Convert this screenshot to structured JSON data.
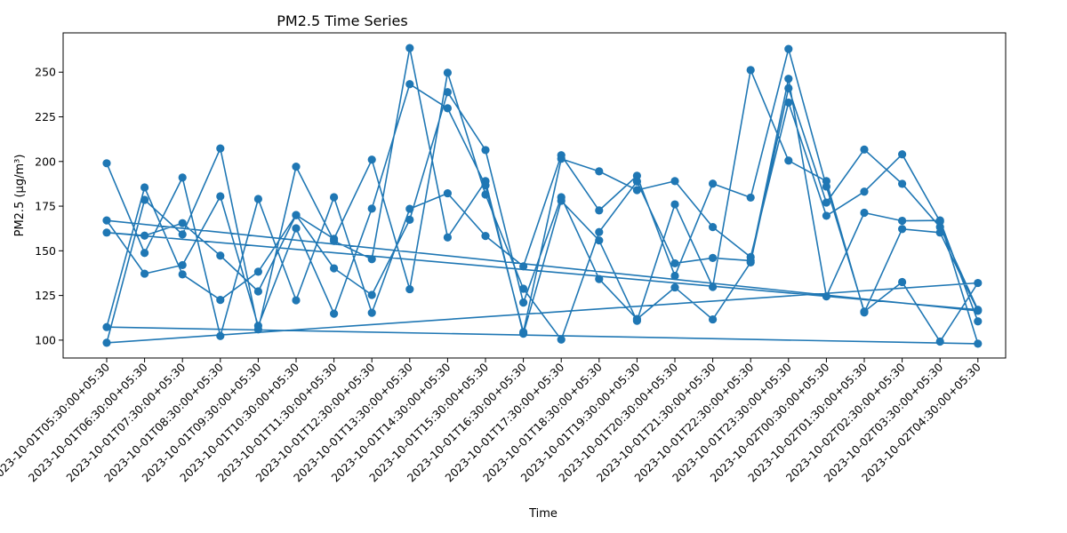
{
  "chart_data": {
    "type": "line",
    "title": "PM2.5 Time Series",
    "xlabel": "Time",
    "ylabel": "PM2.5 (µg/m³)",
    "ylim": [
      90,
      272
    ],
    "y_ticks": [
      100,
      125,
      150,
      175,
      200,
      225,
      250
    ],
    "grid": false,
    "legend": "none",
    "color": "#1f77b4",
    "categories": [
      "2023-10-01T05:30:00+05:30",
      "2023-10-01T06:30:00+05:30",
      "2023-10-01T07:30:00+05:30",
      "2023-10-01T08:30:00+05:30",
      "2023-10-01T09:30:00+05:30",
      "2023-10-01T10:30:00+05:30",
      "2023-10-01T11:30:00+05:30",
      "2023-10-01T12:30:00+05:30",
      "2023-10-01T13:30:00+05:30",
      "2023-10-01T14:30:00+05:30",
      "2023-10-01T15:30:00+05:30",
      "2023-10-01T16:30:00+05:30",
      "2023-10-01T17:30:00+05:30",
      "2023-10-01T18:30:00+05:30",
      "2023-10-01T19:30:00+05:30",
      "2023-10-01T20:30:00+05:30",
      "2023-10-01T21:30:00+05:30",
      "2023-10-01T22:30:00+05:30",
      "2023-10-01T23:30:00+05:30",
      "2023-10-02T00:30:00+05:30",
      "2023-10-02T01:30:00+05:30",
      "2023-10-02T02:30:00+05:30",
      "2023-10-02T03:30:00+05:30",
      "2023-10-02T04:30:00+05:30"
    ],
    "series": [
      {
        "values": [
          199,
          148.8,
          191,
          102.3,
          179,
          122.3,
          180,
          115.3,
          173.5,
          182.2,
          158.3,
          141.3,
          203.5,
          172.6,
          192,
          136,
          187.6,
          179.8,
          263,
          186,
          116,
          132.5,
          99.2,
          132
        ]
      },
      {
        "values": [
          98.5,
          178.5,
          159.2,
          207.3,
          106,
          197.1,
          155.5,
          145.3,
          263.5,
          157.5,
          189,
          103.6,
          178,
          155.8,
          110.8,
          176,
          129.8,
          251.2,
          200.5,
          189,
          115.5,
          162.2,
          160.2,
          116.4
        ]
      },
      {
        "values": [
          167,
          137.2,
          142,
          180.5,
          108,
          162.6,
          114.8,
          173.6,
          243.3,
          229.8,
          186.6,
          104.5,
          201.5,
          194.5,
          184,
          189,
          163.3,
          146.5,
          233,
          169.6,
          183.1,
          204,
          166.4,
          98
        ]
      },
      {
        "values": [
          107.3,
          185.5,
          136.8,
          122.5,
          138.3,
          170,
          140.2,
          125.3,
          167.4,
          238.8,
          206.4,
          121,
          180,
          134.2,
          111.8,
          129.5,
          111.6,
          143.5,
          241,
          177,
          206.7,
          187.5,
          163.3,
          117
        ]
      },
      {
        "values": [
          160.2,
          158.5,
          165.5,
          147.3,
          127.3,
          170,
          156.7,
          201,
          128.5,
          249.7,
          181.5,
          128.8,
          100.3,
          160.5,
          188.8,
          143,
          146,
          144.5,
          246.3,
          124.5,
          171.3,
          166.8,
          167,
          110.5
        ]
      }
    ]
  }
}
